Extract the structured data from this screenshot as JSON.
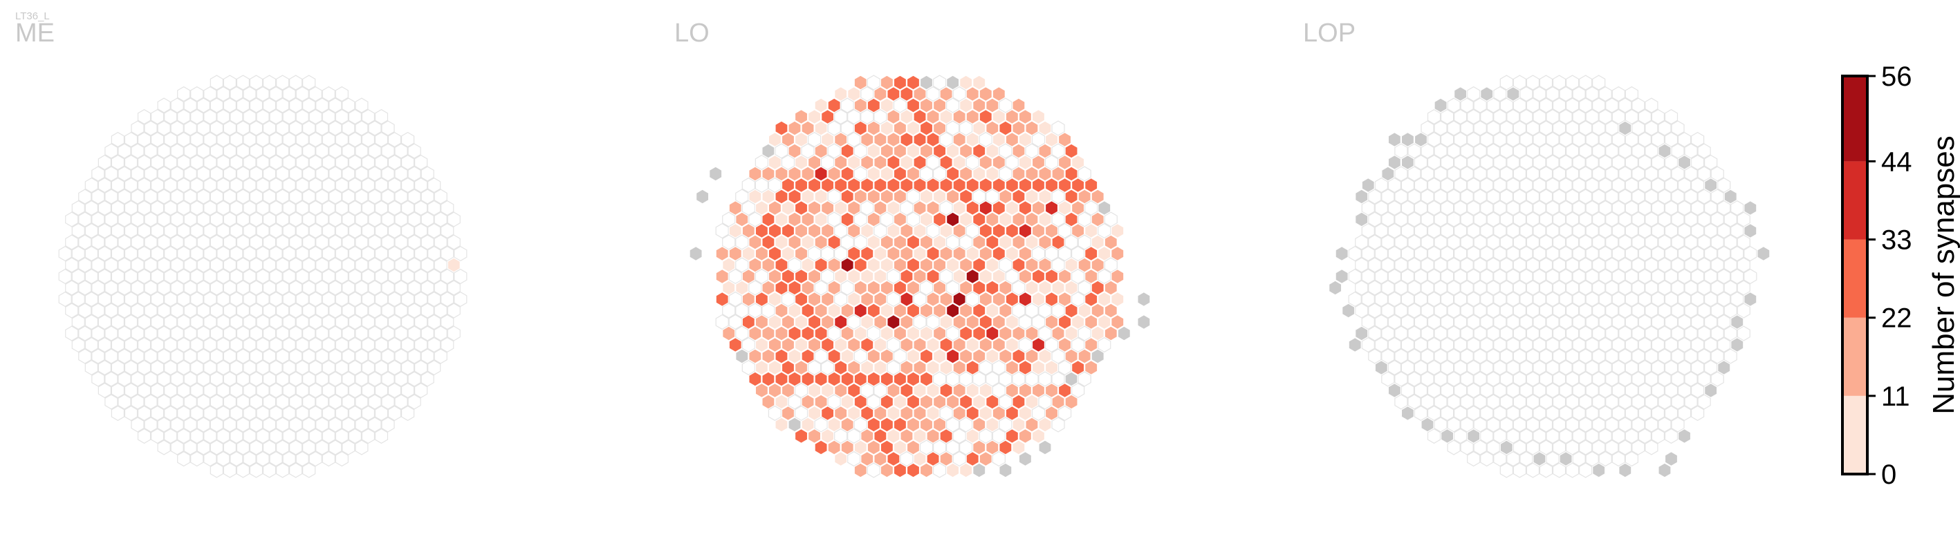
{
  "chart_data": {
    "type": "heatmap",
    "layout": "hexagonal column grid",
    "cell_type_label": "LT36_L",
    "panels": [
      {
        "title": "ME",
        "grid_radius": 16.6,
        "cells": [
          {
            "q": 15,
            "r": -1,
            "value": 4
          },
          {
            "q": 16,
            "r": 3,
            "value": 3
          }
        ],
        "outside_cells": []
      },
      {
        "title": "LO",
        "grid_radius": 16.8,
        "cells": [
          {
            "q": -5,
            "r": -1,
            "value": 55
          },
          {
            "q": -4,
            "r": 4,
            "value": 52
          },
          {
            "q": 5,
            "r": -5,
            "value": 50
          },
          {
            "q": 4,
            "r": 0,
            "value": 49
          },
          {
            "q": 2,
            "r": 2,
            "value": 48
          },
          {
            "q": 1,
            "r": 3,
            "value": 47
          },
          {
            "q": -3,
            "r": -9,
            "value": 40
          },
          {
            "q": -6,
            "r": 3,
            "value": 39
          },
          {
            "q": -2,
            "r": 2,
            "value": 38
          },
          {
            "q": 3,
            "r": 5,
            "value": 38
          },
          {
            "q": 7,
            "r": 2,
            "value": 37
          },
          {
            "q": -8,
            "r": 4,
            "value": 36
          },
          {
            "q": 10,
            "r": -4,
            "value": 36
          },
          {
            "q": 6,
            "r": 6,
            "value": 35
          },
          {
            "q": -1,
            "r": 7,
            "value": 34
          },
          {
            "q": 8,
            "r": -6,
            "value": 34
          },
          {
            "q": 13,
            "r": -6,
            "value": 33
          },
          {
            "q": -4,
            "r": -2,
            "value": 32
          },
          {
            "q": 0,
            "r": -1,
            "value": 31
          },
          {
            "q": 4,
            "r": 7,
            "value": 30
          }
        ],
        "background_values": [
          18,
          9,
          24,
          15,
          6,
          21,
          12,
          27,
          3,
          16
        ],
        "outside_cells": [
          {
            "q": 9,
            "r": -17
          },
          {
            "q": 11,
            "r": -17
          },
          {
            "q": 17,
            "r": -6
          },
          {
            "q": 16,
            "r": 2
          },
          {
            "q": 15,
            "r": 4
          },
          {
            "q": 13,
            "r": 5
          },
          {
            "q": 10,
            "r": 7
          },
          {
            "q": 7,
            "r": 9
          },
          {
            "q": 2,
            "r": 15
          },
          {
            "q": 0,
            "r": 16
          },
          {
            "q": -2,
            "r": 17
          },
          {
            "q": -4,
            "r": 17
          },
          {
            "q": -16,
            "r": 13
          },
          {
            "q": -17,
            "r": 7
          },
          {
            "q": -16,
            "r": -2
          },
          {
            "q": -13,
            "r": -7
          },
          {
            "q": -11,
            "r": -9
          },
          {
            "q": -6,
            "r": -11
          }
        ]
      },
      {
        "title": "LOP",
        "grid_radius": 16.6,
        "cells": [],
        "outside_cells": [
          {
            "q": -6,
            "r": -12
          },
          {
            "q": -5,
            "r": -12
          },
          {
            "q": -4,
            "r": -12
          },
          {
            "q": -7,
            "r": -10
          },
          {
            "q": -6,
            "r": -10
          },
          {
            "q": -8,
            "r": -9
          },
          {
            "q": -10,
            "r": -8
          },
          {
            "q": -11,
            "r": -7
          },
          {
            "q": -12,
            "r": -5
          },
          {
            "q": -15,
            "r": -2
          },
          {
            "q": -16,
            "r": 0
          },
          {
            "q": -17,
            "r": 1
          },
          {
            "q": -17,
            "r": 3
          },
          {
            "q": -17,
            "r": 5
          },
          {
            "q": -18,
            "r": 6
          },
          {
            "q": -17,
            "r": 8
          },
          {
            "q": -17,
            "r": 10
          },
          {
            "q": -17,
            "r": 12
          },
          {
            "q": -16,
            "r": 13
          },
          {
            "q": -15,
            "r": 14
          },
          {
            "q": -13,
            "r": 14
          },
          {
            "q": -11,
            "r": 15
          },
          {
            "q": -9,
            "r": 16
          },
          {
            "q": -7,
            "r": 16
          },
          {
            "q": -5,
            "r": 17
          },
          {
            "q": -3,
            "r": 17
          },
          {
            "q": 0,
            "r": 17
          },
          {
            "q": 1,
            "r": 16
          },
          {
            "q": 3,
            "r": 14
          },
          {
            "q": 7,
            "r": 10
          },
          {
            "q": 9,
            "r": 8
          },
          {
            "q": 11,
            "r": 6
          },
          {
            "q": 12,
            "r": 4
          },
          {
            "q": 14,
            "r": 2
          },
          {
            "q": 17,
            "r": -2
          },
          {
            "q": 17,
            "r": -4
          },
          {
            "q": 18,
            "r": -6
          },
          {
            "q": 17,
            "r": -7
          },
          {
            "q": 16,
            "r": -8
          },
          {
            "q": 15,
            "r": -10
          },
          {
            "q": 14,
            "r": -11
          },
          {
            "q": 12,
            "r": -13
          },
          {
            "q": 5,
            "r": -16
          },
          {
            "q": 3,
            "r": -16
          },
          {
            "q": 1,
            "r": -16
          },
          {
            "q": -1,
            "r": -15
          }
        ]
      }
    ],
    "colorbar": {
      "label": "Number of synapses",
      "min": 0,
      "max": 56,
      "ticks": [
        0,
        11,
        22,
        33,
        44,
        56
      ],
      "bin_colors": [
        "#fde4d8",
        "#fbad92",
        "#f7694a",
        "#d52c27",
        "#a50f15"
      ],
      "empty_cell_outline": "#e4e4e4",
      "outside_cell_color": "#cacaca"
    }
  }
}
